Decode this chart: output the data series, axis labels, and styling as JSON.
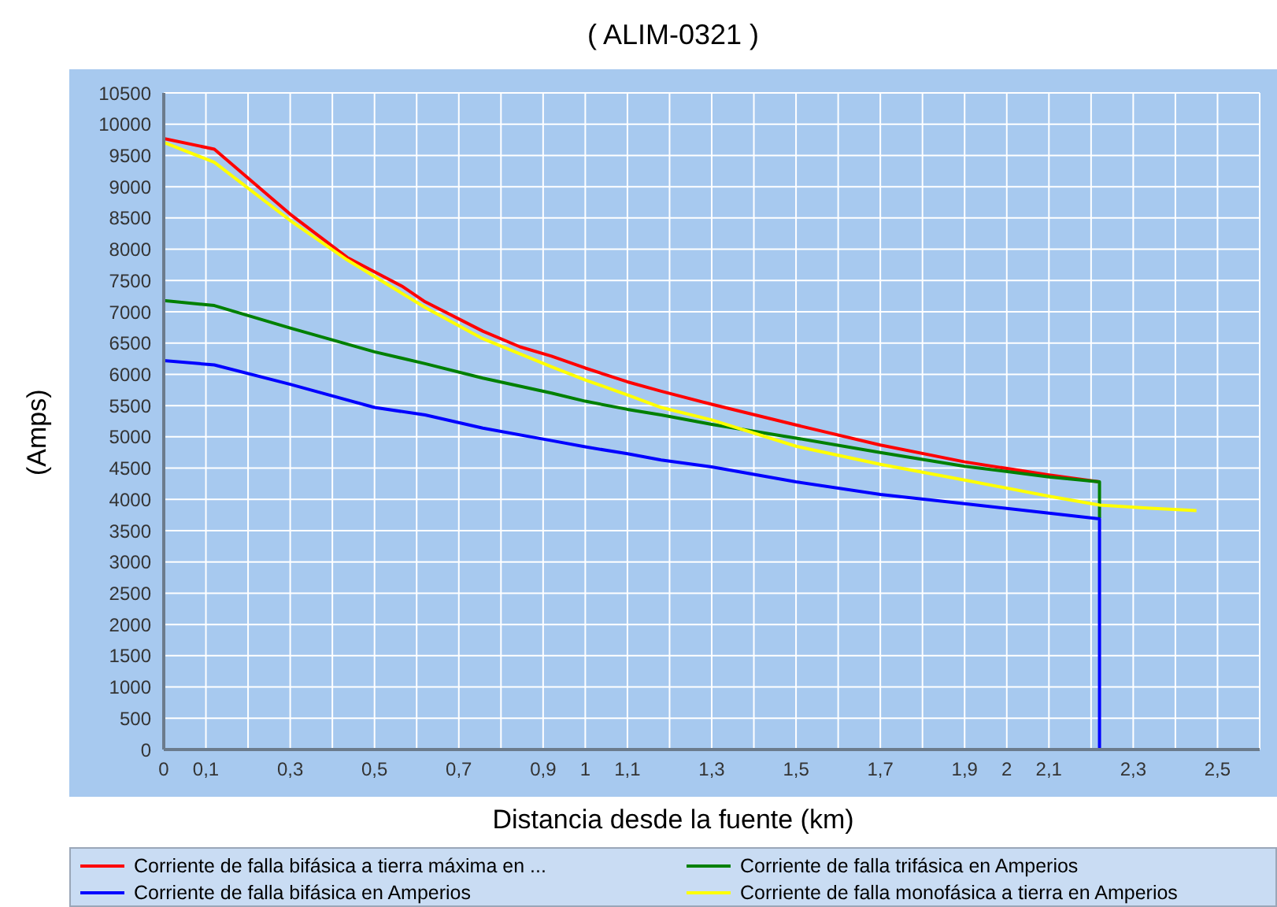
{
  "chart_data": {
    "type": "line",
    "title": "( ALIM-0321 )",
    "xlabel": "Distancia desde la fuente (km)",
    "ylabel": "(Amps)",
    "xlim": [
      0,
      2.6
    ],
    "xticks": [
      0,
      {
        "value": 0.1,
        "label": "0,1"
      },
      {
        "value": 0.2,
        "label": null
      },
      {
        "value": 0.3,
        "label": "0,3"
      },
      {
        "value": 0.4,
        "label": null
      },
      {
        "value": 0.5,
        "label": "0,5"
      },
      {
        "value": 0.6,
        "label": null
      },
      {
        "value": 0.7,
        "label": "0,7"
      },
      {
        "value": 0.8,
        "label": null
      },
      {
        "value": 0.9,
        "label": "0,9"
      },
      1,
      {
        "value": 1.1,
        "label": "1,1"
      },
      {
        "value": 1.2,
        "label": null
      },
      {
        "value": 1.3,
        "label": "1,3"
      },
      {
        "value": 1.4,
        "label": null
      },
      {
        "value": 1.5,
        "label": "1,5"
      },
      {
        "value": 1.6,
        "label": null
      },
      {
        "value": 1.7,
        "label": "1,7"
      },
      {
        "value": 1.8,
        "label": null
      },
      {
        "value": 1.9,
        "label": "1,9"
      },
      2,
      {
        "value": 2.1,
        "label": "2,1"
      },
      {
        "value": 2.2,
        "label": null
      },
      {
        "value": 2.3,
        "label": "2,3"
      },
      {
        "value": 2.4,
        "label": null
      },
      {
        "value": 2.5,
        "label": "2,5"
      }
    ],
    "ylim": [
      0,
      10500
    ],
    "yticks": [
      0,
      500,
      1000,
      1500,
      2000,
      2500,
      3000,
      3500,
      4000,
      4500,
      5000,
      5500,
      6000,
      6500,
      7000,
      7500,
      8000,
      8500,
      9000,
      9500,
      10000,
      10500
    ],
    "grid": true,
    "legend": "bottom",
    "marker": "none",
    "line_style": "solid",
    "series": [
      {
        "name": "Corriente de falla bifásica a tierra máxima en ...",
        "color": "#ff0000",
        "x": [
          0,
          0.12,
          0.3,
          0.435,
          0.565,
          0.62,
          0.757,
          0.845,
          0.92,
          1.0,
          1.1,
          1.18,
          1.3,
          1.5,
          1.7,
          1.9,
          2.1,
          2.22
        ],
        "values": [
          9770,
          9600,
          8560,
          7870,
          7410,
          7160,
          6690,
          6440,
          6290,
          6100,
          5880,
          5730,
          5520,
          5190,
          4870,
          4600,
          4390,
          4280
        ]
      },
      {
        "name": "Corriente de falla trifásica en Amperios",
        "color": "#008000",
        "x": [
          0,
          0.12,
          0.3,
          0.5,
          0.62,
          0.757,
          0.92,
          1.0,
          1.1,
          1.18,
          1.3,
          1.5,
          1.7,
          1.9,
          2.1,
          2.22,
          2.22
        ],
        "values": [
          7180,
          7100,
          6740,
          6360,
          6170,
          5940,
          5700,
          5570,
          5440,
          5350,
          5200,
          4980,
          4750,
          4530,
          4360,
          4280,
          3700
        ]
      },
      {
        "name": "Corriente de falla bifásica en Amperios",
        "color": "#0000ff",
        "x": [
          0,
          0.12,
          0.3,
          0.5,
          0.62,
          0.757,
          0.92,
          1.0,
          1.1,
          1.18,
          1.3,
          1.5,
          1.7,
          1.9,
          2.1,
          2.22,
          2.22,
          2.45
        ],
        "values": [
          6220,
          6150,
          5840,
          5470,
          5350,
          5140,
          4940,
          4840,
          4730,
          4630,
          4520,
          4280,
          4080,
          3930,
          3780,
          3690,
          0,
          0
        ]
      },
      {
        "name": "Corriente de falla monofásica a tierra en Amperios",
        "color": "#ffff00",
        "x": [
          0,
          0.12,
          0.3,
          0.435,
          0.62,
          0.757,
          0.92,
          1.0,
          1.1,
          1.18,
          1.3,
          1.5,
          1.7,
          1.9,
          2.1,
          2.22,
          2.34,
          2.45
        ],
        "values": [
          9710,
          9390,
          8460,
          7830,
          7070,
          6570,
          6120,
          5910,
          5670,
          5470,
          5270,
          4850,
          4560,
          4310,
          4050,
          3910,
          3860,
          3820
        ]
      }
    ]
  }
}
